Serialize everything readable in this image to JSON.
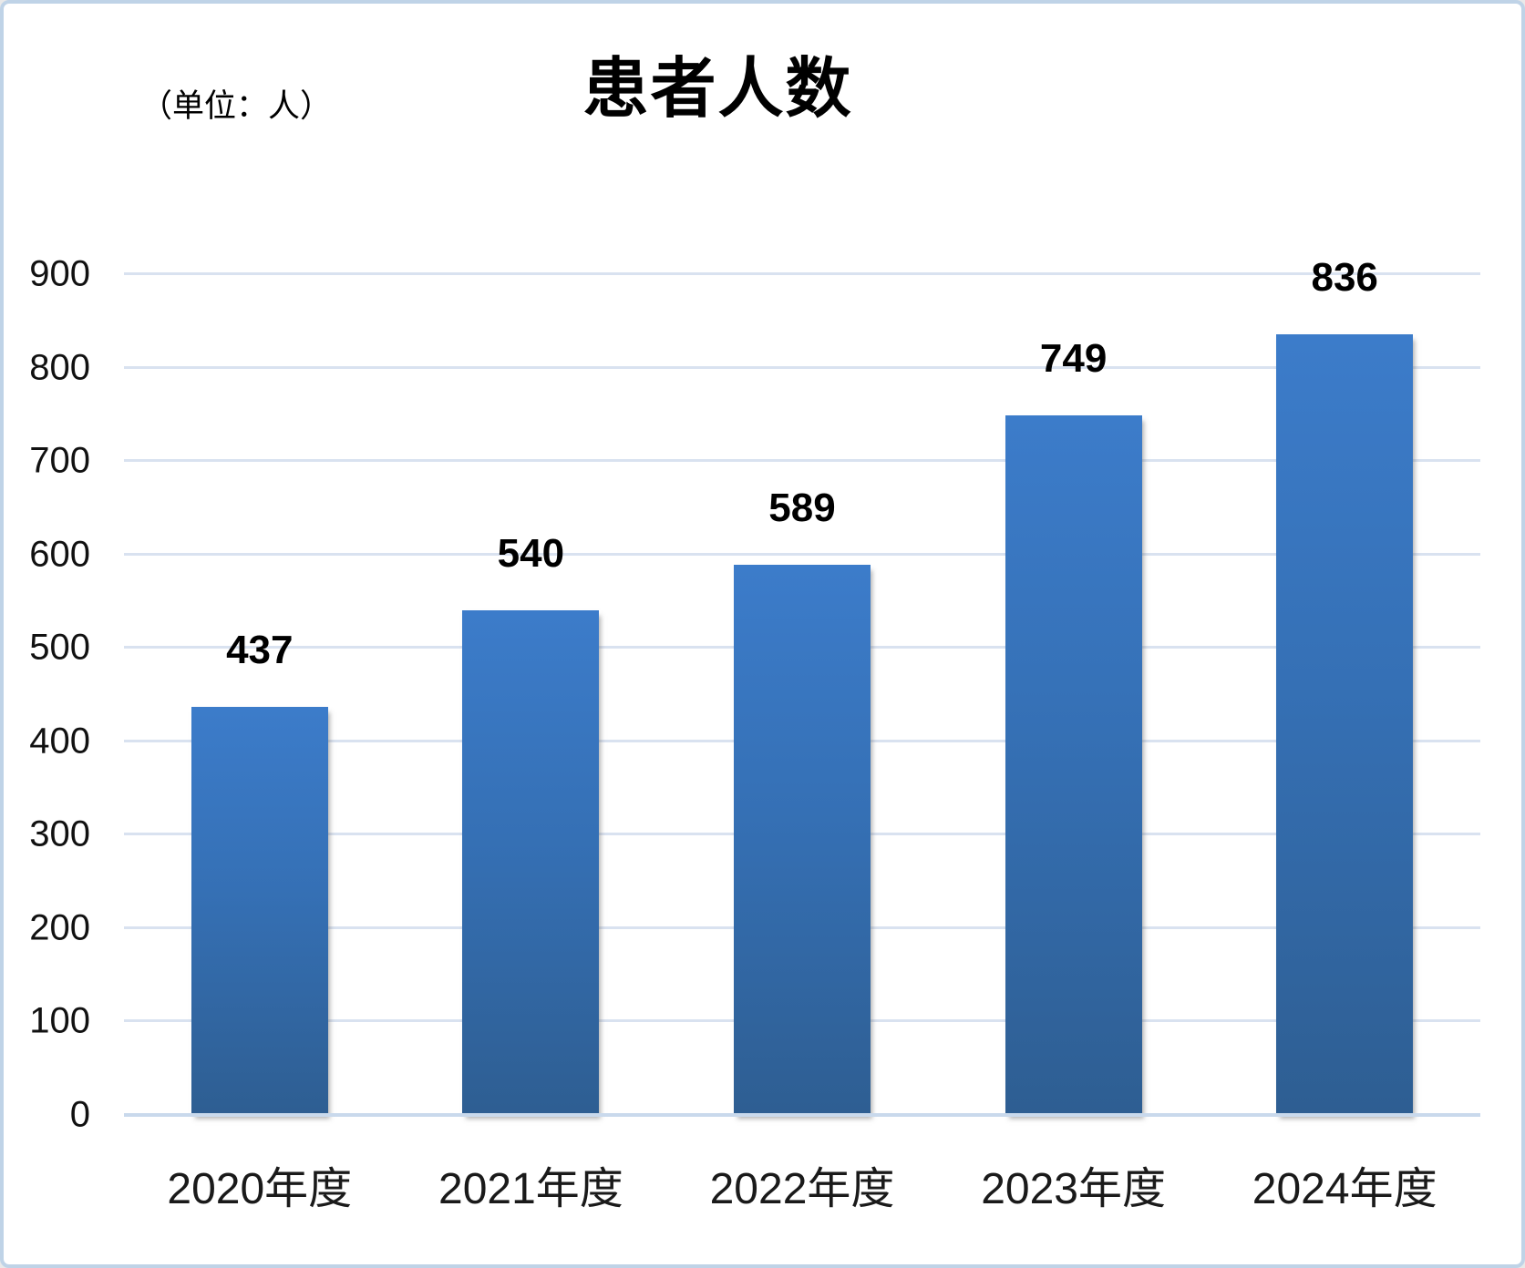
{
  "title": "患者人数",
  "unit_label": "（单位：人）",
  "chart_data": {
    "type": "bar",
    "title": "患者人数",
    "unit_label": "（单位：人）",
    "categories": [
      "2020年度",
      "2021年度",
      "2022年度",
      "2023年度",
      "2024年度"
    ],
    "values": [
      437,
      540,
      589,
      749,
      836
    ],
    "xlabel": "",
    "ylabel": "",
    "ylim": [
      0,
      900
    ],
    "yticks": [
      0,
      100,
      200,
      300,
      400,
      500,
      600,
      700,
      800,
      900
    ],
    "grid": true,
    "legend_position": "none",
    "data_labels_shown": true,
    "colors": {
      "bar_gradient_top": "#3c7cca",
      "bar_gradient_bottom": "#2e5e92",
      "gridline": "#d9e2f0",
      "axis_line": "#c9d9ec",
      "data_label": "#000000",
      "frame_border": "#bfd3e7",
      "background": "#ffffff"
    }
  }
}
